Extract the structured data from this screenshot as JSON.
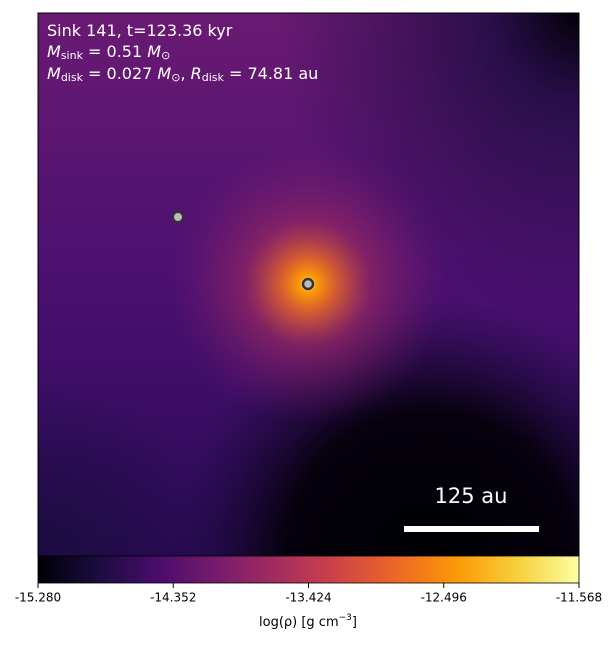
{
  "chart_data": {
    "type": "density-map",
    "annotations": [
      [
        "Sink 141, t=123.36 kyr"
      ],
      [
        "M",
        "sink",
        " = 0.51 ",
        "M",
        "⊙"
      ],
      [
        "M",
        "disk",
        " = 0.027 ",
        "M",
        "⊙",
        ", ",
        "R",
        "disk",
        " = 74.81 au"
      ]
    ],
    "scale_bar_label": "125 au",
    "colorbar": {
      "label": [
        "log(ρ) [g cm",
        "−3",
        "]"
      ],
      "lim": [
        -15.28,
        -11.568
      ],
      "ticks": [
        {
          "value": -15.28,
          "label": "-15.280"
        },
        -14.352,
        -13.424,
        -12.496,
        -11.568
      ],
      "colors": [
        "#000004",
        "#1b0c41",
        "#4a0c6b",
        "#781c6d",
        "#a52c60",
        "#cf4446",
        "#ed6925",
        "#fb9b06",
        "#f7d13d",
        "#fcffa4"
      ]
    }
  }
}
